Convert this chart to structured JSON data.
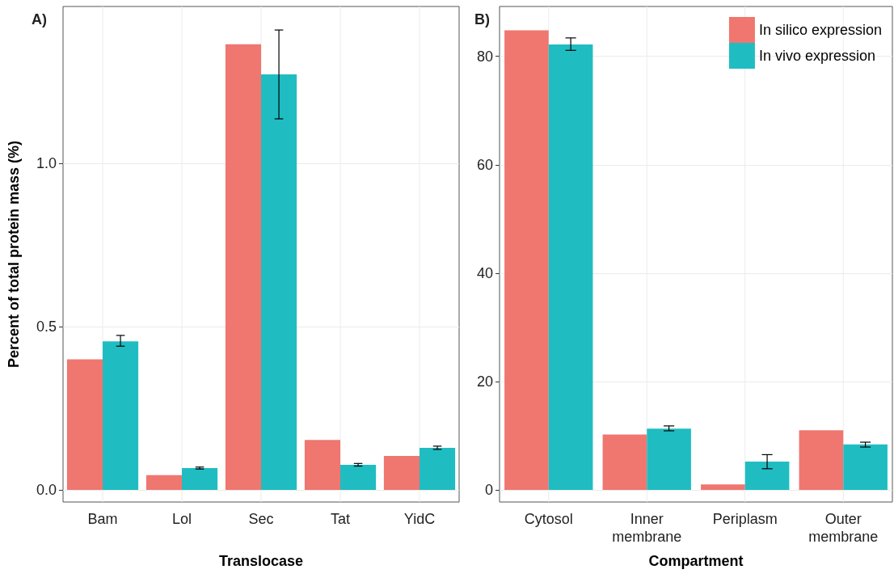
{
  "chart_data": [
    {
      "type": "bar",
      "title": "A)",
      "xlabel": "Translocase",
      "ylabel": "Percent of total protein mass (%)",
      "categories": [
        "Bam",
        "Lol",
        "Sec",
        "Tat",
        "YidC"
      ],
      "series": [
        {
          "color": "#f07670",
          "values": [
            0.4,
            0.045,
            1.364,
            0.153,
            0.104
          ]
        },
        {
          "color": "#1fbdc1",
          "values": [
            0.455,
            0.067,
            1.272,
            0.077,
            0.129
          ],
          "errors": [
            [
              0.44,
              0.473
            ],
            [
              0.064,
              0.07
            ],
            [
              1.136,
              1.408
            ],
            [
              0.073,
              0.081
            ],
            [
              0.124,
              0.134
            ]
          ]
        }
      ],
      "ylim": [
        -0.037,
        1.48
      ],
      "yticks": [
        {
          "value": 0,
          "label": "0.0"
        },
        {
          "value": 0.5,
          "label": "0.5"
        },
        {
          "value": 1,
          "label": "1.0"
        }
      ],
      "grid": true,
      "legend": false
    },
    {
      "type": "bar",
      "title": "B)",
      "xlabel": "Compartment",
      "categories": [
        "Cytosol",
        "Inner\nmembrane",
        "Periplasm",
        "Outer\nmembrane"
      ],
      "series": [
        {
          "name": "In silico expression",
          "color": "#f07670",
          "values": [
            84.8,
            10.2,
            1.0,
            11.0
          ]
        },
        {
          "name": "In vivo expression",
          "color": "#1fbdc1",
          "values": [
            82.2,
            11.3,
            5.2,
            8.4
          ],
          "errors": [
            [
              81.1,
              83.4
            ],
            [
              10.9,
              11.8
            ],
            [
              3.9,
              6.5
            ],
            [
              7.9,
              8.8
            ]
          ]
        }
      ],
      "ylim": [
        -2.24,
        89.2
      ],
      "yticks": [
        0,
        20,
        40,
        60,
        80
      ],
      "grid": true,
      "legend": "top right"
    }
  ]
}
